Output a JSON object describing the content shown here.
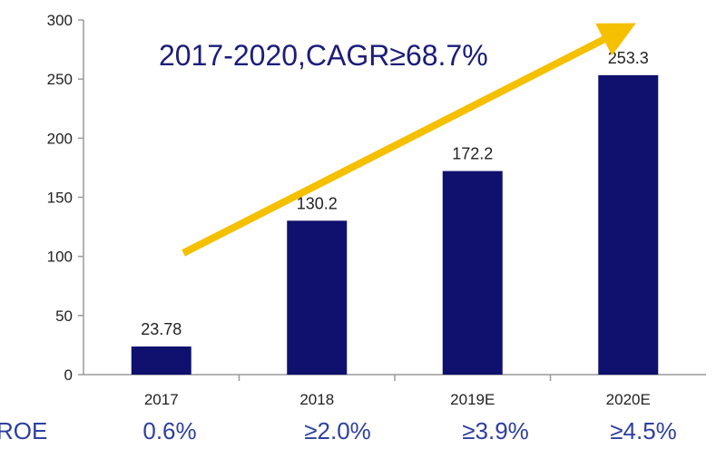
{
  "chart_data": {
    "type": "bar",
    "title": "",
    "xlabel": "",
    "ylabel": "",
    "categories": [
      "2017",
      "2018",
      "2019E",
      "2020E"
    ],
    "values": [
      23.78,
      130.2,
      172.2,
      253.3
    ],
    "value_labels": [
      "23.78",
      "130.2",
      "172.2",
      "253.3"
    ],
    "ylim": [
      0,
      300
    ],
    "yticks": [
      0,
      50,
      100,
      150,
      200,
      250,
      300
    ],
    "grid": false,
    "annotation": "2017-2020,CAGR≥68.7%",
    "roe": {
      "label": "ROE",
      "values": [
        "0.6%",
        "≥2.0%",
        "≥3.9%",
        "≥4.5%"
      ]
    },
    "colors": {
      "bar": "#10106e",
      "arrow": "#f5c000",
      "annotation": "#1c1c7a",
      "roe": "#2d3fa0",
      "axis": "#9a9a9a"
    }
  }
}
